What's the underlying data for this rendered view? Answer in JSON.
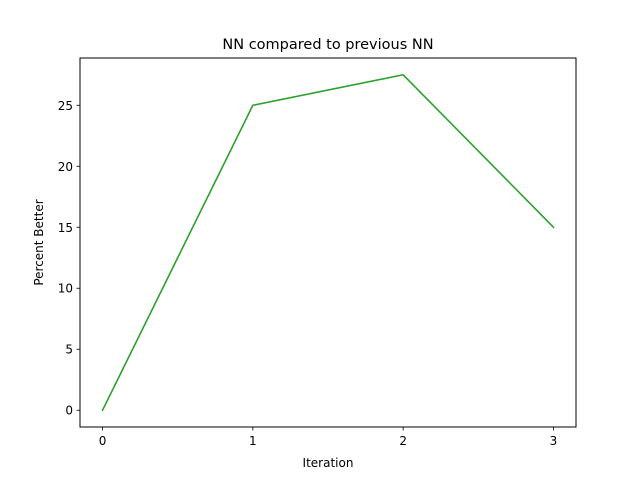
{
  "chart_data": {
    "type": "line",
    "title": "NN compared to previous NN",
    "xlabel": "Iteration",
    "ylabel": "Percent Better",
    "x": [
      0,
      1,
      2,
      3
    ],
    "xticks": [
      "0",
      "1",
      "2",
      "3"
    ],
    "yticks": [
      "0",
      "5",
      "10",
      "15",
      "20",
      "25"
    ],
    "xlim": [
      -0.15,
      3.15
    ],
    "ylim": [
      -1.375,
      28.875
    ],
    "grid": false,
    "series": [
      {
        "values": [
          0,
          25,
          27.5,
          15
        ],
        "color": "#2ca02c"
      }
    ]
  }
}
